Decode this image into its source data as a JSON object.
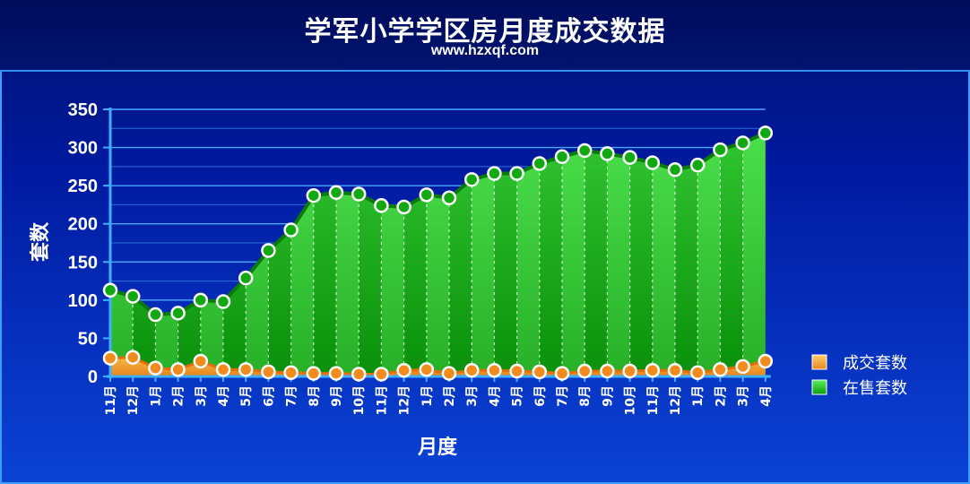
{
  "header": {
    "title": "学军小学学区房月度成交数据",
    "subtitle": "www.hzxqf.com"
  },
  "chart_data": {
    "type": "area",
    "title": "学军小学学区房月度成交数据",
    "subtitle": "www.hzxqf.com",
    "xlabel": "月度",
    "ylabel": "套数",
    "ylim": [
      0,
      350
    ],
    "yticks": [
      0,
      50,
      100,
      150,
      200,
      250,
      300,
      350
    ],
    "grid": true,
    "legend_position": "right",
    "categories": [
      "11月",
      "12月",
      "1月",
      "2月",
      "3月",
      "4月",
      "5月",
      "6月",
      "7月",
      "8月",
      "9月",
      "10月",
      "11月",
      "12月",
      "1月",
      "2月",
      "3月",
      "4月",
      "5月",
      "6月",
      "7月",
      "8月",
      "9月",
      "10月",
      "11月",
      "12月",
      "1月",
      "2月",
      "3月",
      "4月"
    ],
    "series": [
      {
        "name": "成交套数",
        "color": "#f28a1c",
        "values": [
          24,
          25,
          11,
          9,
          20,
          9,
          9,
          6,
          5,
          4,
          4,
          3,
          3,
          8,
          9,
          4,
          8,
          8,
          7,
          6,
          4,
          7,
          7,
          7,
          8,
          8,
          5,
          9,
          13,
          20
        ]
      },
      {
        "name": "在售套数",
        "color": "#1fcc1f",
        "values": [
          113,
          105,
          81,
          83,
          100,
          98,
          129,
          165,
          192,
          237,
          241,
          239,
          224,
          222,
          238,
          234,
          258,
          266,
          266,
          279,
          288,
          296,
          292,
          287,
          280,
          271,
          277,
          297,
          306,
          319
        ]
      }
    ]
  }
}
